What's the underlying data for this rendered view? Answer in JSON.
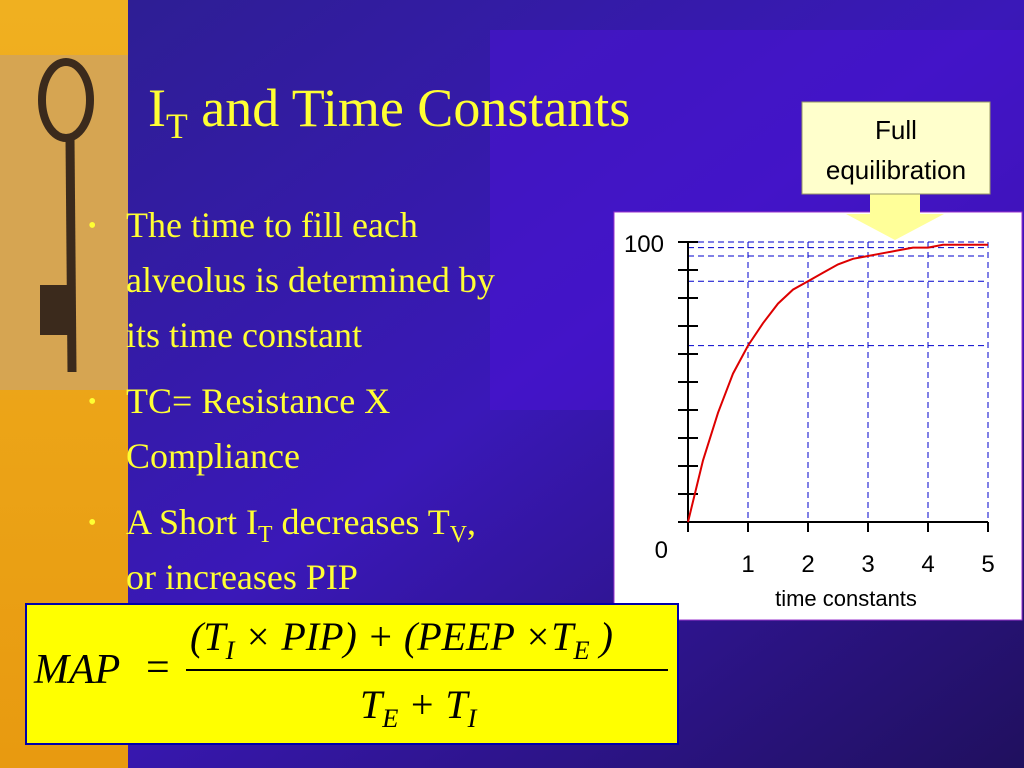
{
  "slide": {
    "title": [
      {
        "text": "I"
      },
      {
        "text": "T",
        "sub": true
      },
      {
        "text": " and Time Constants"
      }
    ],
    "bullets": [
      [
        [
          {
            "text": "The time to fill each"
          }
        ],
        [
          {
            "text": "alveolus is determined by"
          }
        ],
        [
          {
            "text": "its time constant"
          }
        ]
      ],
      [
        [
          {
            "text": "TC= Resistance X"
          }
        ],
        [
          {
            "text": "Compliance"
          }
        ]
      ],
      [
        [
          {
            "text": "A Short I"
          },
          {
            "text": "T",
            "sub": true
          },
          {
            "text": " decreases  T"
          },
          {
            "text": "V",
            "sub": true
          },
          {
            "text": ","
          }
        ],
        [
          {
            "text": "or increases PIP"
          }
        ]
      ]
    ],
    "callout": [
      "Full",
      "equilibration"
    ],
    "formula": {
      "lhs": "MAP",
      "eq": "=",
      "numerator": [
        {
          "text": "(T"
        },
        {
          "text": "I",
          "sub": true
        },
        {
          "text": " × PIP) + (PEEP ×T"
        },
        {
          "text": "E",
          "sub": true
        },
        {
          "text": " )"
        }
      ],
      "denominator": [
        {
          "text": "T"
        },
        {
          "text": "E",
          "sub": true
        },
        {
          "text": " + T"
        },
        {
          "text": "I",
          "sub": true
        }
      ]
    }
  },
  "chart_data": {
    "type": "line",
    "x": [
      0,
      0.25,
      0.5,
      0.75,
      1,
      1.25,
      1.5,
      1.75,
      2,
      2.25,
      2.5,
      2.75,
      3,
      3.25,
      3.5,
      3.75,
      4,
      4.25,
      4.5,
      4.75,
      5
    ],
    "values": [
      0,
      22,
      39,
      53,
      63,
      71,
      78,
      83,
      86,
      89,
      92,
      94,
      95,
      96,
      97,
      98,
      98,
      99,
      99,
      99,
      99
    ],
    "color": "#dd0000",
    "xlim": [
      0,
      5
    ],
    "ylim": [
      0,
      100
    ],
    "xticks": [
      0,
      1,
      2,
      3,
      4,
      5
    ],
    "yticks": [
      0,
      100
    ],
    "yminor_ticks": [
      10,
      20,
      30,
      40,
      50,
      60,
      70,
      80,
      90
    ],
    "xlabel": "time constants",
    "guides": {
      "x": [
        1,
        2,
        3,
        4,
        5
      ],
      "y": [
        63,
        86,
        95,
        98,
        100
      ]
    }
  }
}
